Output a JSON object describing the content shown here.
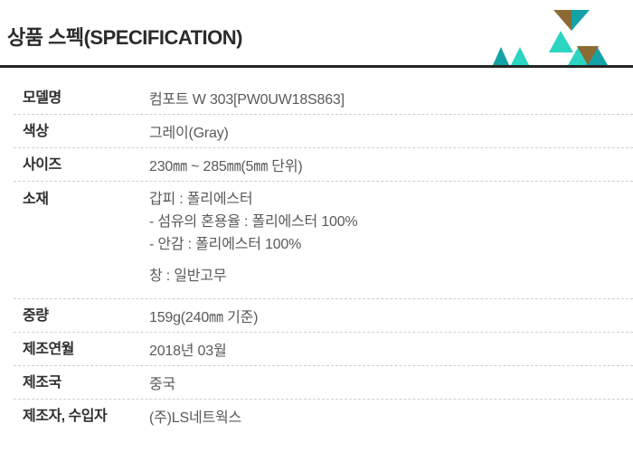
{
  "header": {
    "title": "상품 스펙(SPECIFICATION)",
    "underline_color": "#252525",
    "decoration": {
      "name": "triangle-pattern",
      "colors": {
        "dark_teal": "#14a2a6",
        "light_teal": "#2bd5c2",
        "brown": "#8b6a33"
      }
    }
  },
  "spec_table": {
    "rows": [
      {
        "label": "모델명",
        "value": "컴포트 W 303[PW0UW18S863]"
      },
      {
        "label": "색상",
        "value": "그레이(Gray)"
      },
      {
        "label": "사이즈",
        "value": "230㎜ ~ 285㎜(5㎜ 단위)"
      },
      {
        "label": "소재",
        "value_lines": [
          "갑피 : 폴리에스터",
          "- 섬유의 혼용율 : 폴리에스터 100%",
          "- 안감 : 폴리에스터 100%",
          "",
          "창 : 일반고무"
        ]
      },
      {
        "label": "중량",
        "value": "159g(240㎜ 기준)"
      },
      {
        "label": "제조연월",
        "value": "2018년 03월"
      },
      {
        "label": "제조국",
        "value": "중국"
      },
      {
        "label": "제조자, 수입자",
        "value": "(주)LS네트웍스"
      }
    ]
  }
}
